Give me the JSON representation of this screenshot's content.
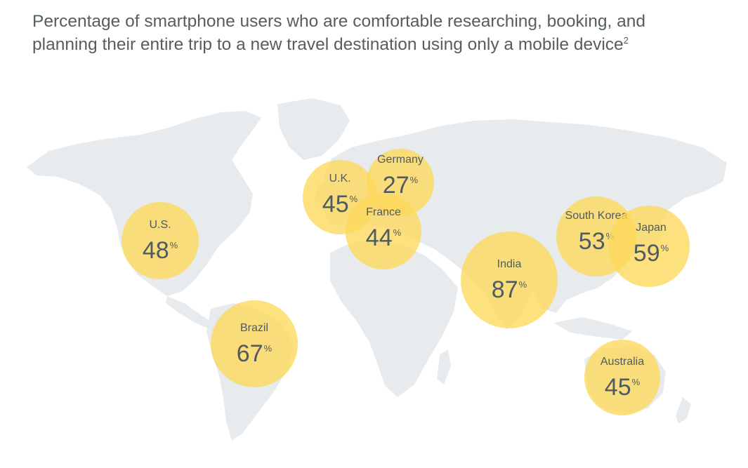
{
  "title": {
    "text": "Percentage of smartphone users who are comfortable researching, booking, and planning their entire trip to a new travel destination using only a mobile device",
    "footnote": "2"
  },
  "colors": {
    "bubble": "#fcd85a",
    "land": "#e8ebee",
    "text": "#515a60"
  },
  "percent_symbol": "%",
  "map_data": {
    "type": "bubble-map",
    "markers": [
      {
        "id": "us",
        "label": "U.S.",
        "value": 48
      },
      {
        "id": "uk",
        "label": "U.K.",
        "value": 45
      },
      {
        "id": "germany",
        "label": "Germany",
        "value": 27
      },
      {
        "id": "france",
        "label": "France",
        "value": 44
      },
      {
        "id": "india",
        "label": "India",
        "value": 87
      },
      {
        "id": "south-korea",
        "label": "South Korea",
        "value": 53
      },
      {
        "id": "japan",
        "label": "Japan",
        "value": 59
      },
      {
        "id": "brazil",
        "label": "Brazil",
        "value": 67
      },
      {
        "id": "australia",
        "label": "Australia",
        "value": 45
      }
    ]
  }
}
